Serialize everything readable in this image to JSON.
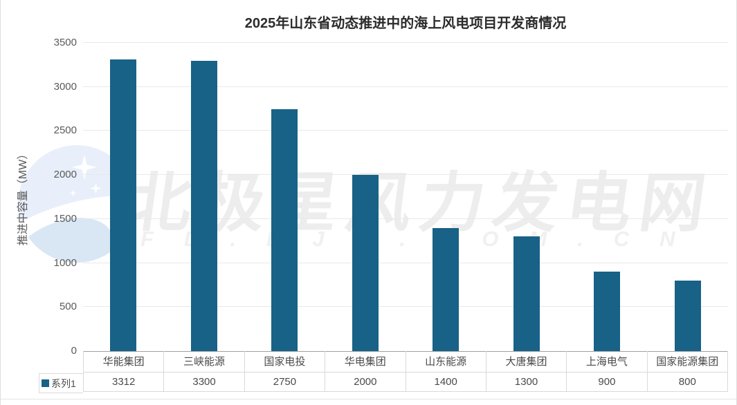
{
  "chart_data": {
    "type": "bar",
    "title": "2025年山东省动态推进中的海上风电项目开发商情况",
    "ylabel": "推进中容量（MW）",
    "xlabel": "",
    "categories": [
      "华能集团",
      "三峡能源",
      "国家电投",
      "华电集团",
      "山东能源",
      "大唐集团",
      "上海电气",
      "国家能源集团"
    ],
    "series": [
      {
        "name": "系列1",
        "values": [
          3312,
          3300,
          2750,
          2000,
          1400,
          1300,
          900,
          800
        ]
      }
    ],
    "ylim": [
      0,
      3500
    ],
    "yticks": [
      0,
      500,
      1000,
      1500,
      2000,
      2500,
      3000,
      3500
    ],
    "grid": true,
    "legend_position": "bottom-left",
    "data_table_shown": true
  },
  "watermark": {
    "main_text": "北极星风力发电网",
    "sub_text": "FD.BJX.COM.CN",
    "logo": "polaris-star-logo"
  },
  "colors": {
    "bar": "#176286",
    "title_text": "#2b2b2b",
    "axis_text": "#595959",
    "table_text": "#4a4a4a",
    "gridline": "#e8e8e8",
    "axis_line": "#a0a0a0",
    "table_border": "#d9d9d9",
    "watermark_text": "#ededed",
    "watermark_subtext": "#f0f0f0",
    "watermark_logo_blue": "#e8effa",
    "background": "#ffffff"
  }
}
